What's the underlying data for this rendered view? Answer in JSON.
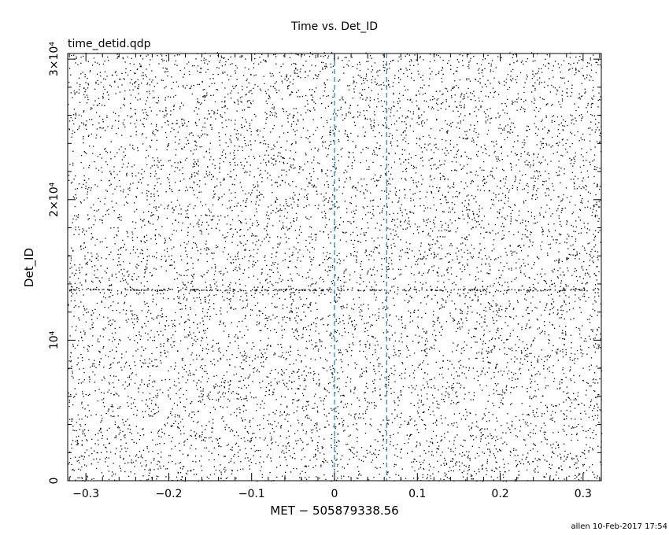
{
  "chart_data": {
    "type": "scatter",
    "title": "Time vs. Det_ID",
    "subtitle": "time_detid.qdp",
    "xlabel": "MET − 505879338.56",
    "ylabel": "Det_ID",
    "footer": "allen 10-Feb-2017 17:54",
    "xlim": [
      -0.322,
      0.322
    ],
    "ylim": [
      0,
      30400
    ],
    "x_ticks": [
      {
        "value": -0.3,
        "label": "−0.3"
      },
      {
        "value": -0.2,
        "label": "−0.2"
      },
      {
        "value": -0.1,
        "label": "−0.1"
      },
      {
        "value": 0,
        "label": "0"
      },
      {
        "value": 0.1,
        "label": "0.1"
      },
      {
        "value": 0.2,
        "label": "0.2"
      },
      {
        "value": 0.3,
        "label": "0.3"
      }
    ],
    "y_ticks": [
      {
        "value": 0,
        "label": "0"
      },
      {
        "value": 10000,
        "label": "10⁴"
      },
      {
        "value": 20000,
        "label": "2×10⁴"
      },
      {
        "value": 30000,
        "label": "3×10⁴"
      }
    ],
    "vertical_markers": [
      {
        "x": 0,
        "color": "#1f8fd6",
        "style": "dashed"
      },
      {
        "x": 0.063,
        "color": "#1f8fd6",
        "style": "dashed"
      }
    ],
    "points": {
      "count": 9000,
      "y_max": 30500,
      "dense_row_y": 13600,
      "dense_row_count": 300,
      "color": "#000000"
    }
  }
}
